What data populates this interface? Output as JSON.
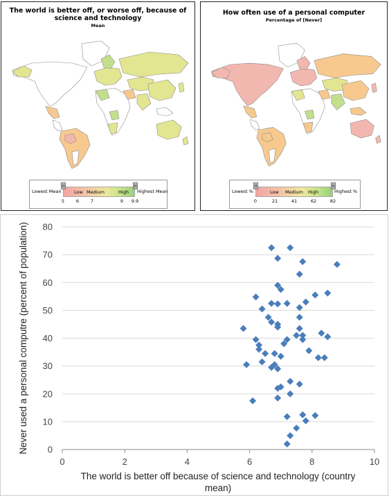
{
  "left_map": {
    "title": "The world is better off, or worse off, because of science and technology",
    "subtitle": "Mean",
    "legend": {
      "low_end": "Lowest Mean",
      "high_end": "Highest Mean",
      "bands": [
        "Low",
        "Medium",
        "High"
      ],
      "ticks": [
        "5",
        "6",
        "7",
        "9",
        "9.9"
      ]
    }
  },
  "right_map": {
    "title": "How often use of a personal computer",
    "subtitle": "Percentage of [Never]",
    "legend": {
      "low_end": "Lowest %",
      "high_end": "Highest %",
      "bands": [
        "Low",
        "Medium",
        "High"
      ],
      "ticks": [
        "0",
        "21",
        "41",
        "62",
        "82"
      ]
    }
  },
  "colors": {
    "marker": "#4a7ebb",
    "grid": "#d9d9d9",
    "legend_low": "#f4a4a4",
    "legend_mid": "#efe89c",
    "legend_high": "#98d07a",
    "map_pink": "#f2b8b0",
    "map_orange": "#f7c98f",
    "map_yellow": "#e3e690",
    "map_green": "#c4df8c"
  },
  "chart_data": {
    "type": "scatter",
    "xlabel": "The world is better  off because of science and technology (country mean)",
    "ylabel": "Never  used a personal computre (percent of population)",
    "xlim": [
      0,
      10
    ],
    "ylim": [
      0,
      80
    ],
    "xticks": [
      0,
      2,
      4,
      6,
      8,
      10
    ],
    "yticks": [
      0,
      10,
      20,
      30,
      40,
      50,
      60,
      70,
      80
    ],
    "grid": "horizontal",
    "marker": "diamond",
    "points": [
      [
        6.7,
        72.5
      ],
      [
        7.3,
        72.5
      ],
      [
        6.9,
        68.7
      ],
      [
        7.7,
        67.5
      ],
      [
        8.8,
        66.5
      ],
      [
        7.6,
        63.0
      ],
      [
        6.9,
        59.0
      ],
      [
        7.0,
        57.5
      ],
      [
        8.5,
        56.2
      ],
      [
        8.1,
        55.5
      ],
      [
        6.2,
        54.8
      ],
      [
        7.8,
        53.0
      ],
      [
        6.7,
        52.5
      ],
      [
        7.2,
        52.5
      ],
      [
        6.9,
        52.3
      ],
      [
        7.6,
        51.0
      ],
      [
        6.4,
        50.5
      ],
      [
        6.6,
        47.5
      ],
      [
        7.6,
        47.5
      ],
      [
        6.7,
        45.8
      ],
      [
        6.9,
        45.0
      ],
      [
        6.9,
        44.0
      ],
      [
        5.8,
        43.5
      ],
      [
        7.6,
        43.5
      ],
      [
        8.3,
        41.8
      ],
      [
        7.5,
        41.0
      ],
      [
        7.7,
        41.0
      ],
      [
        8.5,
        40.5
      ],
      [
        6.2,
        39.5
      ],
      [
        7.7,
        39.5
      ],
      [
        7.2,
        39.5
      ],
      [
        7.1,
        38.0
      ],
      [
        6.3,
        37.5
      ],
      [
        6.3,
        36.0
      ],
      [
        7.9,
        35.5
      ],
      [
        6.5,
        34.5
      ],
      [
        6.8,
        34.5
      ],
      [
        7.0,
        33.5
      ],
      [
        8.2,
        33.0
      ],
      [
        8.4,
        33.0
      ],
      [
        6.4,
        31.5
      ],
      [
        6.8,
        30.5
      ],
      [
        5.9,
        30.5
      ],
      [
        6.7,
        29.5
      ],
      [
        6.9,
        29.0
      ],
      [
        7.3,
        24.5
      ],
      [
        7.6,
        23.5
      ],
      [
        7.0,
        22.5
      ],
      [
        6.9,
        22.0
      ],
      [
        7.3,
        20.0
      ],
      [
        6.9,
        18.5
      ],
      [
        6.1,
        17.5
      ],
      [
        7.7,
        12.5
      ],
      [
        8.1,
        12.2
      ],
      [
        7.2,
        11.8
      ],
      [
        7.8,
        10.3
      ],
      [
        7.5,
        7.7
      ],
      [
        7.3,
        5.0
      ],
      [
        7.2,
        2.0
      ]
    ]
  }
}
